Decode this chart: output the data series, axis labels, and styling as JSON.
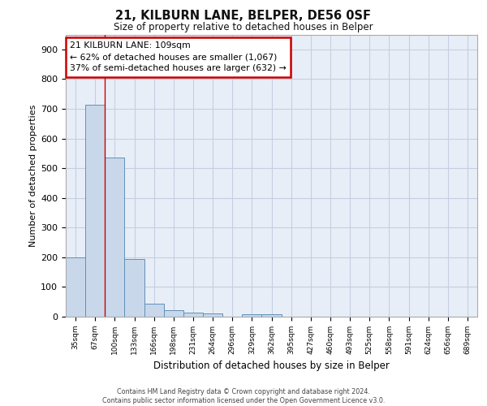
{
  "title1": "21, KILBURN LANE, BELPER, DE56 0SF",
  "title2": "Size of property relative to detached houses in Belper",
  "xlabel": "Distribution of detached houses by size in Belper",
  "ylabel": "Number of detached properties",
  "categories": [
    "35sqm",
    "67sqm",
    "100sqm",
    "133sqm",
    "166sqm",
    "198sqm",
    "231sqm",
    "264sqm",
    "296sqm",
    "329sqm",
    "362sqm",
    "395sqm",
    "427sqm",
    "460sqm",
    "493sqm",
    "525sqm",
    "558sqm",
    "591sqm",
    "624sqm",
    "656sqm",
    "689sqm"
  ],
  "values": [
    200,
    714,
    535,
    193,
    45,
    22,
    15,
    11,
    0,
    9,
    9,
    0,
    0,
    0,
    0,
    0,
    0,
    0,
    0,
    0,
    0
  ],
  "bar_color": "#c8d8ea",
  "bar_edgecolor": "#6090b8",
  "grid_color": "#c5cfe0",
  "background_color": "#e8eef8",
  "red_line_x": 1.5,
  "annotation_text": "21 KILBURN LANE: 109sqm\n← 62% of detached houses are smaller (1,067)\n37% of semi-detached houses are larger (632) →",
  "annotation_box_color": "#ffffff",
  "annotation_box_edgecolor": "#cc0000",
  "ylim": [
    0,
    950
  ],
  "yticks": [
    0,
    100,
    200,
    300,
    400,
    500,
    600,
    700,
    800,
    900
  ],
  "footer1": "Contains HM Land Registry data © Crown copyright and database right 2024.",
  "footer2": "Contains public sector information licensed under the Open Government Licence v3.0."
}
